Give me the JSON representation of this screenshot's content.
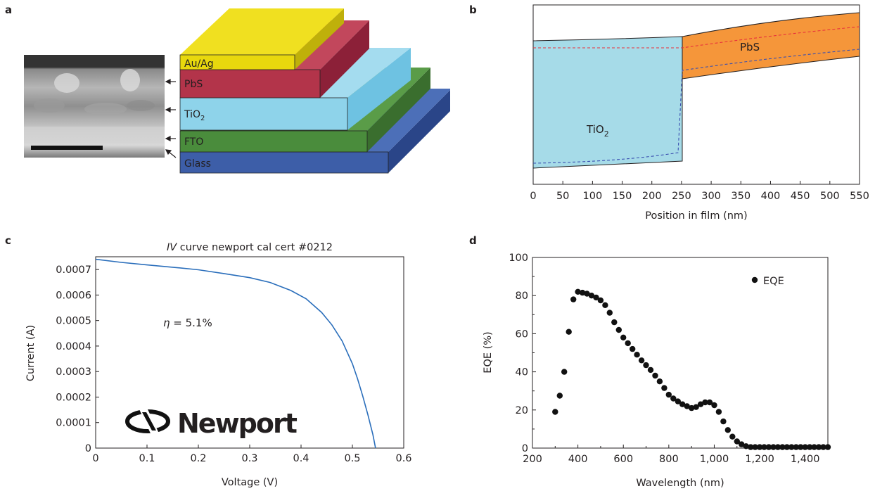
{
  "panels": {
    "a": {
      "label": "a",
      "layers": [
        {
          "name": "Au/Ag",
          "color": "#e8d80d"
        },
        {
          "name": "PbS",
          "color": "#b3344a"
        },
        {
          "name": "TiO2",
          "color": "#8ed3ea"
        },
        {
          "name": "FTO",
          "color": "#4a8c3c"
        },
        {
          "name": "Glass",
          "color": "#3d5ea8"
        }
      ],
      "layer_labels": {
        "au_ag": "Au/Ag",
        "pbs": "PbS",
        "tio_base": "TiO",
        "tio_sub": "2",
        "fto": "FTO",
        "glass": "Glass"
      }
    },
    "b": {
      "label": "b",
      "region_labels": {
        "tio_base": "TiO",
        "tio_sub": "2",
        "pbs": "PbS"
      },
      "colors": {
        "tio2": "#a6dbe8",
        "pbs": "#f5963a",
        "fermi_red": "#e8323c",
        "fermi_blue": "#3a4fb0"
      }
    },
    "c": {
      "label": "c",
      "title_italic": "IV",
      "title_rest": " curve newport cal cert #0212",
      "annotation_symbol": "η",
      "annotation_rest": " = 5.1%",
      "logo_text": "Newport",
      "line_color": "#2a6ebb"
    },
    "d": {
      "label": "d",
      "marker_color": "#111111"
    }
  },
  "chart_data": [
    {
      "id": "b",
      "type": "area",
      "title": "",
      "xlabel": "Position in film (nm)",
      "ylabel": "",
      "xlim": [
        0,
        550
      ],
      "xticks": [
        "0",
        "50",
        "100",
        "150",
        "200",
        "250",
        "300",
        "350",
        "400",
        "450",
        "500",
        "550"
      ],
      "series": [
        {
          "name": "TiO2",
          "x": [
            0,
            250
          ]
        },
        {
          "name": "PbS",
          "x": [
            250,
            550
          ]
        }
      ]
    },
    {
      "id": "c",
      "type": "line",
      "title": "IV curve newport cal cert #0212",
      "xlabel": "Voltage (V)",
      "ylabel": "Current (A)",
      "xlim": [
        0,
        0.6
      ],
      "ylim": [
        0,
        0.00075
      ],
      "xticks": [
        "0",
        "0.1",
        "0.2",
        "0.3",
        "0.4",
        "0.5",
        "0.6"
      ],
      "yticks": [
        "0",
        "0.0001",
        "0.0002",
        "0.0003",
        "0.0004",
        "0.0005",
        "0.0006",
        "0.0007"
      ],
      "x": [
        0,
        0.05,
        0.1,
        0.15,
        0.2,
        0.25,
        0.3,
        0.34,
        0.38,
        0.41,
        0.44,
        0.46,
        0.48,
        0.5,
        0.51,
        0.52,
        0.53,
        0.54,
        0.545
      ],
      "y": [
        0.00074,
        0.000728,
        0.000718,
        0.000709,
        0.000699,
        0.000684,
        0.000668,
        0.000649,
        0.000618,
        0.000585,
        0.000532,
        0.000483,
        0.00042,
        0.000331,
        0.000272,
        0.000205,
        0.000132,
        5.2e-05,
        0.0
      ]
    },
    {
      "id": "d",
      "type": "scatter",
      "title": "",
      "xlabel": "Wavelength (nm)",
      "ylabel": "EQE (%)",
      "xlim": [
        200,
        1500
      ],
      "ylim": [
        0,
        100
      ],
      "xticks": [
        "200",
        "400",
        "600",
        "800",
        "1,000",
        "1,200",
        "1,400"
      ],
      "yticks": [
        "0",
        "20",
        "40",
        "60",
        "80",
        "100"
      ],
      "legend": "top-right",
      "series": [
        {
          "name": "EQE",
          "x": [
            300,
            320,
            340,
            360,
            380,
            400,
            420,
            440,
            460,
            480,
            500,
            520,
            540,
            560,
            580,
            600,
            620,
            640,
            660,
            680,
            700,
            720,
            740,
            760,
            780,
            800,
            820,
            840,
            860,
            880,
            900,
            920,
            940,
            960,
            980,
            1000,
            1020,
            1040,
            1060,
            1080,
            1100,
            1120,
            1140,
            1160,
            1180,
            1200,
            1220,
            1240,
            1260,
            1280,
            1300,
            1320,
            1340,
            1360,
            1380,
            1400,
            1420,
            1440,
            1460,
            1480,
            1500
          ],
          "y": [
            19,
            27.5,
            40,
            61,
            78,
            82,
            81.5,
            81,
            80,
            79,
            77.5,
            75,
            71,
            66,
            62,
            58,
            55,
            52,
            49,
            46,
            43.5,
            41,
            38,
            35,
            31.5,
            28,
            26,
            24.5,
            23,
            22,
            21,
            21.5,
            23,
            24,
            24,
            22.5,
            19,
            14,
            9.5,
            6,
            3.5,
            2,
            1,
            0.5,
            0.5,
            0.5,
            0.5,
            0.5,
            0.5,
            0.5,
            0.5,
            0.5,
            0.5,
            0.5,
            0.5,
            0.5,
            0.5,
            0.5,
            0.5,
            0.5,
            0.5
          ]
        }
      ]
    }
  ]
}
